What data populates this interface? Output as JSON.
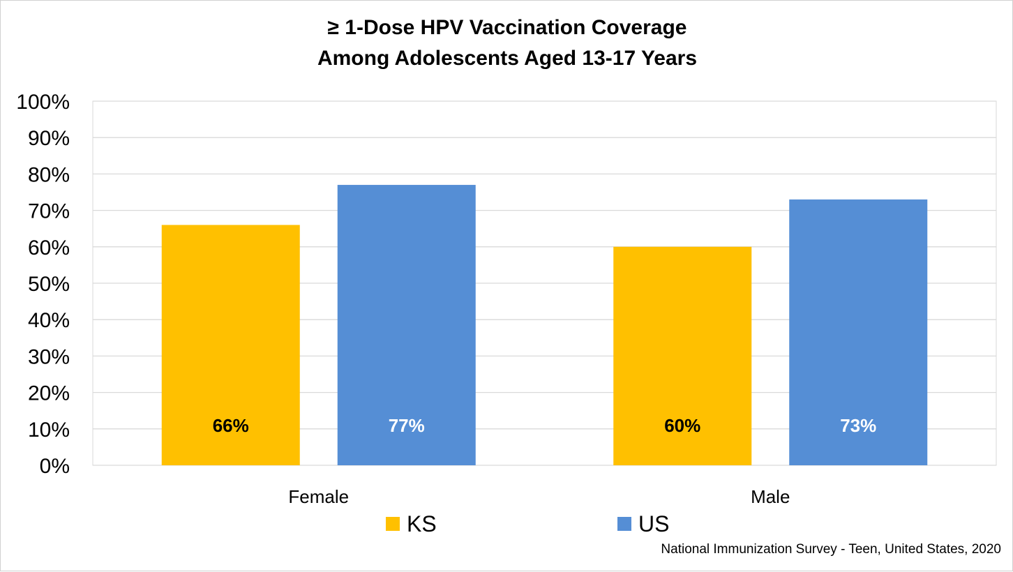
{
  "chart_data": {
    "type": "bar",
    "title_lines": [
      "≥ 1-Dose HPV Vaccination Coverage",
      "Among Adolescents Aged 13-17 Years"
    ],
    "categories": [
      "Female",
      "Male"
    ],
    "series": [
      {
        "name": "KS",
        "values": [
          66,
          60
        ],
        "color": "#FFC000",
        "value_labels": [
          "66%",
          "60%"
        ],
        "label_color": "#000000"
      },
      {
        "name": "US",
        "values": [
          77,
          73
        ],
        "color": "#558ED5",
        "value_labels": [
          "77%",
          "73%"
        ],
        "label_color": "#ffffff"
      }
    ],
    "ylim": [
      0,
      100
    ],
    "yticks": [
      "0%",
      "10%",
      "20%",
      "30%",
      "40%",
      "50%",
      "60%",
      "70%",
      "80%",
      "90%",
      "100%"
    ],
    "grid": true,
    "legend_position": "bottom-center"
  },
  "source_note": "National Immunization Survey - Teen, United States, 2020"
}
